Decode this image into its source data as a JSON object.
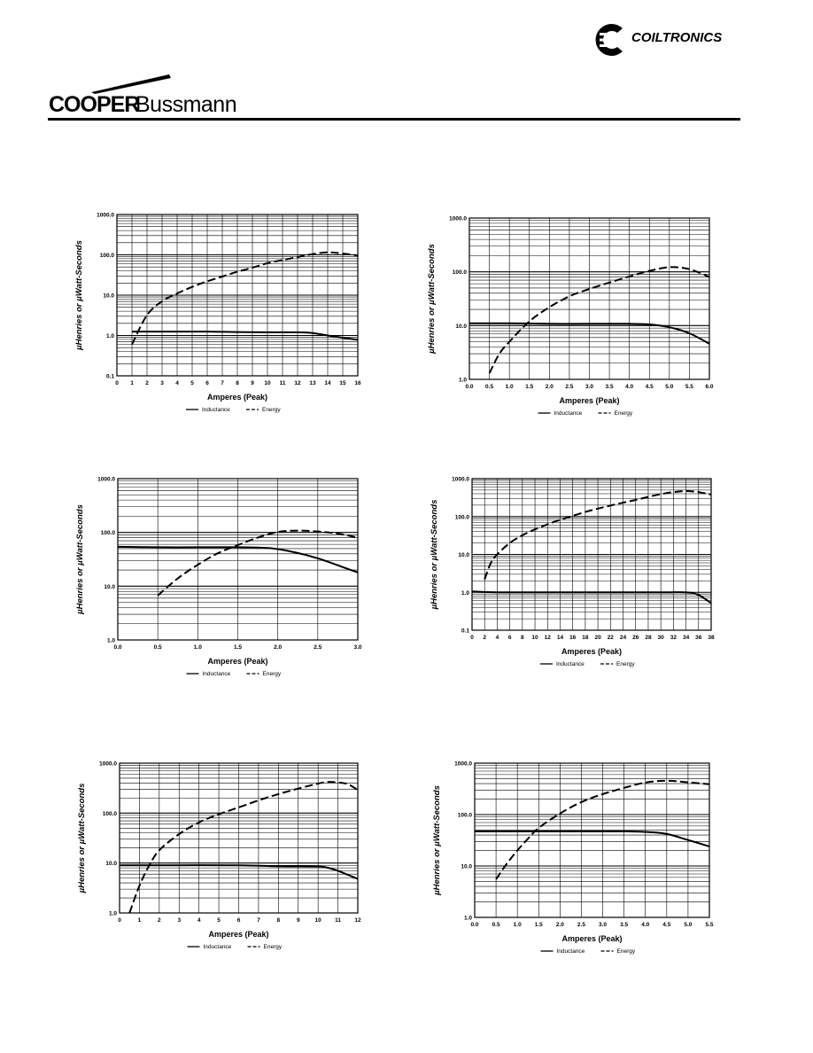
{
  "header": {
    "brand_left_bold": "COOPER",
    "brand_left_regular": "Bussmann",
    "brand_right": "COILTRONICS"
  },
  "chart_data": [
    {
      "type": "line",
      "yscale": "log",
      "xlim": [
        0,
        16
      ],
      "ylim": [
        0.1,
        1000
      ],
      "xticks": [
        0,
        1,
        2,
        3,
        4,
        5,
        6,
        7,
        8,
        9,
        10,
        11,
        12,
        13,
        14,
        15,
        16
      ],
      "xtick_labels": [
        "0",
        "1",
        "2",
        "3",
        "4",
        "5",
        "6",
        "7",
        "8",
        "9",
        "10",
        "11",
        "12",
        "13",
        "14",
        "15",
        "16"
      ],
      "yticks": [
        0.1,
        1,
        10,
        100,
        1000
      ],
      "ytick_labels": [
        "0.1",
        "1.0",
        "10.0",
        "100.0",
        "1000.0"
      ],
      "xlabel": "Amperes (Peak)",
      "ylabel": "µHenries or  µWatt-Seconds",
      "series": [
        {
          "name": "Inductance",
          "style": "solid",
          "x": [
            1,
            2,
            4,
            6,
            8,
            10,
            12,
            13,
            14,
            15,
            16
          ],
          "y": [
            1.25,
            1.25,
            1.25,
            1.25,
            1.22,
            1.2,
            1.2,
            1.15,
            1.0,
            0.88,
            0.78
          ]
        },
        {
          "name": "Energy",
          "style": "dashed",
          "x": [
            1,
            2,
            3,
            4,
            5,
            6,
            7,
            8,
            9,
            10,
            11,
            12,
            13,
            14,
            15,
            16
          ],
          "y": [
            0.6,
            3.2,
            7,
            11,
            16,
            22,
            29,
            38,
            48,
            62,
            74,
            88,
            104,
            115,
            108,
            96
          ]
        }
      ]
    },
    {
      "type": "line",
      "yscale": "log",
      "xlim": [
        0,
        6
      ],
      "ylim": [
        1,
        1000
      ],
      "xticks": [
        0,
        0.5,
        1,
        1.5,
        2,
        2.5,
        3,
        3.5,
        4,
        4.5,
        5,
        5.5,
        6
      ],
      "xtick_labels": [
        "0.0",
        "0.5",
        "1.0",
        "1.5",
        "2.0",
        "2.5",
        "3.0",
        "3.5",
        "4.0",
        "4.5",
        "5.0",
        "5.5",
        "6.0"
      ],
      "yticks": [
        1,
        10,
        100,
        1000
      ],
      "ytick_labels": [
        "1.0",
        "10.0",
        "100.0",
        "1000.0"
      ],
      "xlabel": "Amperes (Peak)",
      "ylabel": "µHenries or  µWatt-Seconds",
      "series": [
        {
          "name": "Inductance",
          "style": "solid",
          "x": [
            0,
            1,
            2,
            3,
            4,
            4.5,
            5,
            5.5,
            6
          ],
          "y": [
            11,
            11,
            10.8,
            10.8,
            10.8,
            10.5,
            9.3,
            7.2,
            4.6
          ]
        },
        {
          "name": "Energy",
          "style": "dashed",
          "x": [
            0.5,
            0.75,
            1,
            1.5,
            2,
            2.5,
            3,
            3.5,
            4,
            4.5,
            5,
            5.5,
            6
          ],
          "y": [
            1.3,
            3,
            5,
            12,
            22,
            35,
            48,
            63,
            82,
            104,
            122,
            112,
            80
          ]
        }
      ]
    },
    {
      "type": "line",
      "yscale": "log",
      "xlim": [
        0,
        3
      ],
      "ylim": [
        1,
        1000
      ],
      "xticks": [
        0,
        0.5,
        1,
        1.5,
        2,
        2.5,
        3
      ],
      "xtick_labels": [
        "0.0",
        "0.5",
        "1.0",
        "1.5",
        "2.0",
        "2.5",
        "3.0"
      ],
      "yticks": [
        1,
        10,
        100,
        1000
      ],
      "ytick_labels": [
        "1.0",
        "10.0",
        "100.0",
        "1000.0"
      ],
      "xlabel": "Amperes (Peak)",
      "ylabel": "µHenries or  µWatt-Seconds",
      "series": [
        {
          "name": "Inductance",
          "style": "solid",
          "x": [
            0,
            0.5,
            1,
            1.5,
            1.9,
            2.2,
            2.5,
            2.8,
            3
          ],
          "y": [
            54,
            53,
            53,
            53,
            51,
            43,
            33,
            23,
            18
          ]
        },
        {
          "name": "Energy",
          "style": "dashed",
          "x": [
            0.5,
            0.75,
            1,
            1.25,
            1.5,
            1.75,
            2,
            2.25,
            2.5,
            2.75,
            3
          ],
          "y": [
            6.7,
            14,
            25,
            41,
            58,
            80,
            102,
            108,
            104,
            95,
            80
          ]
        }
      ]
    },
    {
      "type": "line",
      "yscale": "log",
      "xlim": [
        0,
        38
      ],
      "ylim": [
        0.1,
        1000
      ],
      "xticks": [
        0,
        2,
        4,
        6,
        8,
        10,
        12,
        14,
        16,
        18,
        20,
        22,
        24,
        26,
        28,
        30,
        32,
        34,
        36,
        38
      ],
      "xtick_labels": [
        "0",
        "2",
        "4",
        "6",
        "8",
        "10",
        "12",
        "14",
        "16",
        "18",
        "20",
        "22",
        "24",
        "26",
        "28",
        "30",
        "32",
        "34",
        "36",
        "38"
      ],
      "yticks": [
        0.1,
        1,
        10,
        100,
        1000
      ],
      "ytick_labels": [
        "0.1",
        "1.0",
        "10.0",
        "100.0",
        "1000.0"
      ],
      "xlabel": "Amperes (Peak)",
      "ylabel": "µHenries or  µWatt-Seconds",
      "series": [
        {
          "name": "Inductance",
          "style": "solid",
          "x": [
            0,
            4,
            10,
            20,
            30,
            34,
            36,
            38
          ],
          "y": [
            1.05,
            1.0,
            1.0,
            1.0,
            1.0,
            1.0,
            0.85,
            0.52
          ]
        },
        {
          "name": "Energy",
          "style": "dashed",
          "x": [
            2,
            3,
            4,
            6,
            8,
            10,
            12,
            14,
            16,
            18,
            20,
            22,
            24,
            26,
            28,
            30,
            32,
            34,
            36,
            38
          ],
          "y": [
            2.2,
            6,
            10,
            20,
            32,
            46,
            62,
            82,
            104,
            132,
            162,
            195,
            232,
            275,
            330,
            390,
            440,
            470,
            440,
            380
          ]
        }
      ]
    },
    {
      "type": "line",
      "yscale": "log",
      "xlim": [
        0,
        12
      ],
      "ylim": [
        1,
        1000
      ],
      "xticks": [
        0,
        1,
        2,
        3,
        4,
        5,
        6,
        7,
        8,
        9,
        10,
        11,
        12
      ],
      "xtick_labels": [
        "0",
        "1",
        "2",
        "3",
        "4",
        "5",
        "6",
        "7",
        "8",
        "9",
        "10",
        "11",
        "12"
      ],
      "yticks": [
        1,
        10,
        100,
        1000
      ],
      "ytick_labels": [
        "1.0",
        "10.0",
        "100.0",
        "1000.0"
      ],
      "xlabel": "Amperes (Peak)",
      "ylabel": "µHenries or  µWatt-Seconds",
      "series": [
        {
          "name": "Inductance",
          "style": "solid",
          "x": [
            0,
            3,
            6,
            8,
            10,
            10.5,
            11,
            11.5,
            12
          ],
          "y": [
            9,
            9,
            9,
            8.6,
            8.5,
            8,
            7,
            5.8,
            4.8
          ]
        },
        {
          "name": "Energy",
          "style": "dashed",
          "x": [
            0.5,
            1,
            1.5,
            2,
            3,
            4,
            5,
            6,
            7,
            8,
            9,
            10,
            10.5,
            11,
            11.5,
            12
          ],
          "y": [
            1,
            3.5,
            9,
            18,
            38,
            65,
            95,
            130,
            180,
            240,
            310,
            390,
            420,
            410,
            380,
            290
          ]
        }
      ]
    },
    {
      "type": "line",
      "yscale": "log",
      "xlim": [
        0,
        5.5
      ],
      "ylim": [
        1,
        1000
      ],
      "xticks": [
        0,
        0.5,
        1,
        1.5,
        2,
        2.5,
        3,
        3.5,
        4,
        4.5,
        5,
        5.5
      ],
      "xtick_labels": [
        "0.0",
        "0.5",
        "1.0",
        "1.5",
        "2.0",
        "2.5",
        "3.0",
        "3.5",
        "4.0",
        "4.5",
        "5.0",
        "5.5"
      ],
      "yticks": [
        1,
        10,
        100,
        1000
      ],
      "ytick_labels": [
        "1.0",
        "10.0",
        "100.0",
        "1000.0"
      ],
      "xlabel": "Amperes (Peak)",
      "ylabel": "µHenries or  µWatt-Seconds",
      "series": [
        {
          "name": "Inductance",
          "style": "solid",
          "x": [
            0,
            1,
            2,
            3,
            3.5,
            4,
            4.5,
            5,
            5.5
          ],
          "y": [
            47,
            47,
            47,
            47,
            47,
            46,
            42,
            32,
            24
          ]
        },
        {
          "name": "Energy",
          "style": "dashed",
          "x": [
            0.5,
            0.75,
            1,
            1.25,
            1.5,
            2,
            2.5,
            3,
            3.5,
            4,
            4.5,
            5,
            5.5
          ],
          "y": [
            5.5,
            11,
            20,
            34,
            55,
            105,
            175,
            250,
            330,
            420,
            455,
            425,
            390
          ]
        }
      ]
    }
  ]
}
